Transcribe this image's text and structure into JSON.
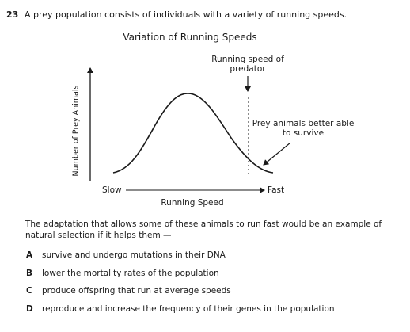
{
  "question": {
    "number": "23",
    "stem": "A prey population consists of individuals with a variety of running speeds.",
    "prompt": "The adaptation that allows some of these animals to run fast would be an example of natural selection if it helps them —",
    "options": [
      {
        "letter": "A",
        "text": "survive and undergo mutations in their DNA"
      },
      {
        "letter": "B",
        "text": "lower the mortality rates of the population"
      },
      {
        "letter": "C",
        "text": "produce offspring that run at average speeds"
      },
      {
        "letter": "D",
        "text": "reproduce and increase the frequency of their genes in the population"
      }
    ]
  },
  "figure": {
    "title": "Variation of Running Speeds",
    "y_axis_label": "Number of Prey Animals",
    "x_axis_label": "Running Speed",
    "x_axis_left": "Slow",
    "x_axis_right": "Fast",
    "predator_label": "Running speed of predator",
    "prey_label": "Prey animals better able to survive"
  }
}
